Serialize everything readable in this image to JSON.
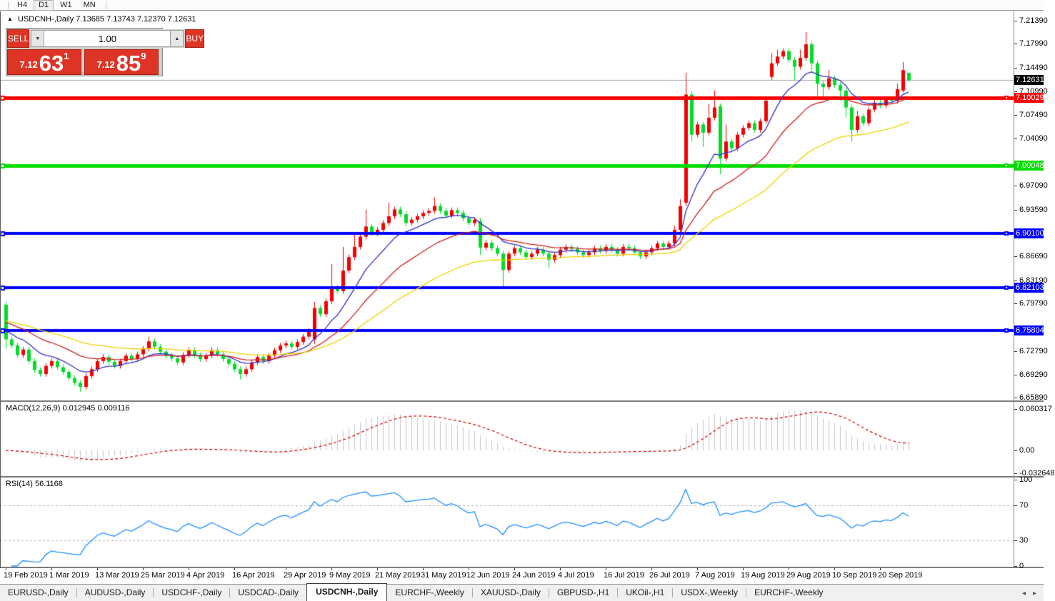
{
  "toolbar": {
    "timeframes": [
      {
        "label": "H4",
        "active": false
      },
      {
        "label": "D1",
        "active": true
      },
      {
        "label": "W1",
        "active": false
      },
      {
        "label": "MN",
        "active": false
      }
    ]
  },
  "title": {
    "collapse_icon": "▲",
    "symbol": "USDCNH-,Daily",
    "ohlc": "7.13685 7.13743 7.12370 7.12631"
  },
  "trade_panel": {
    "sell_label": "SELL",
    "buy_label": "BUY",
    "volume": "1.00",
    "down_icon": "▼",
    "up_icon": "▲",
    "sell_price_small": "7.12",
    "sell_price_big": "63",
    "sell_price_sup": "1",
    "buy_price_small": "7.12",
    "buy_price_big": "85",
    "buy_price_sup": "9"
  },
  "price_axis": {
    "current": {
      "value": 7.12631,
      "label": "7.12631",
      "box_color": "#000000"
    },
    "ticks": [
      {
        "v": 7.2139,
        "t": "7.21390"
      },
      {
        "v": 7.1799,
        "t": "7.17990"
      },
      {
        "v": 7.1449,
        "t": "7.14490"
      },
      {
        "v": 7.1099,
        "t": "7.10990"
      },
      {
        "v": 7.0749,
        "t": "7.07490"
      },
      {
        "v": 7.0409,
        "t": "7.04090"
      },
      {
        "v": 6.9709,
        "t": "6.97090"
      },
      {
        "v": 6.9359,
        "t": "6.93590"
      },
      {
        "v": 6.8669,
        "t": "6.86690"
      },
      {
        "v": 6.8319,
        "t": "6.83190"
      },
      {
        "v": 6.7979,
        "t": "6.79790"
      },
      {
        "v": 6.7279,
        "t": "6.72790"
      },
      {
        "v": 6.6929,
        "t": "6.69290"
      },
      {
        "v": 6.6589,
        "t": "6.65890"
      }
    ]
  },
  "hlines": [
    {
      "value": 7.10029,
      "label": "7.10029",
      "color": "#FF0000",
      "thickness": 5
    },
    {
      "value": 7.00048,
      "label": "7.00048",
      "color": "#00DD00",
      "thickness": 5
    },
    {
      "value": 6.901,
      "label": "6.90100",
      "color": "#0000FF",
      "thickness": 4
    },
    {
      "value": 6.82103,
      "label": "6.82103",
      "color": "#0000FF",
      "thickness": 4
    },
    {
      "value": 6.75804,
      "label": "6.75804",
      "color": "#0000FF",
      "thickness": 4
    }
  ],
  "chart_data": {
    "type": "candlestick",
    "symbol": "USDCNH",
    "timeframe": "Daily",
    "up_color": "#F40000",
    "down_color": "#00DC28",
    "current_price_line_color": "#a8a8a8",
    "closes": [
      6.745,
      6.736,
      6.722,
      6.73,
      6.713,
      6.7,
      6.694,
      6.706,
      6.713,
      6.704,
      6.697,
      6.688,
      6.681,
      6.675,
      6.691,
      6.701,
      6.713,
      6.719,
      6.712,
      6.706,
      6.713,
      6.721,
      6.716,
      6.723,
      6.731,
      6.742,
      6.734,
      6.727,
      6.721,
      6.717,
      6.711,
      6.722,
      6.729,
      6.722,
      6.716,
      6.721,
      6.729,
      6.723,
      6.716,
      6.709,
      6.701,
      6.694,
      6.701,
      6.711,
      6.719,
      6.713,
      6.721,
      6.729,
      6.736,
      6.739,
      6.734,
      6.741,
      6.749,
      6.756,
      6.791,
      6.782,
      6.801,
      6.821,
      6.816,
      6.846,
      6.866,
      6.881,
      6.896,
      6.911,
      6.901,
      6.906,
      6.916,
      6.926,
      6.936,
      6.929,
      6.916,
      6.921,
      6.926,
      6.931,
      6.934,
      6.941,
      6.934,
      6.927,
      6.935,
      6.931,
      6.923,
      6.916,
      6.921,
      6.88,
      6.887,
      6.879,
      6.871,
      6.847,
      6.871,
      6.879,
      6.873,
      6.866,
      6.871,
      6.877,
      6.871,
      6.862,
      6.869,
      6.877,
      6.881,
      6.878,
      6.873,
      6.869,
      6.873,
      6.879,
      6.875,
      6.881,
      6.877,
      6.871,
      6.881,
      6.879,
      6.873,
      6.867,
      6.873,
      6.879,
      6.886,
      6.881,
      6.886,
      6.906,
      6.941,
      7.105,
      7.046,
      7.061,
      7.049,
      7.071,
      7.086,
      7.011,
      7.036,
      7.026,
      7.046,
      7.056,
      7.063,
      7.053,
      7.066,
      7.096,
      7.151,
      7.161,
      7.169,
      7.156,
      7.146,
      7.159,
      7.179,
      7.151,
      7.121,
      7.116,
      7.129,
      7.119,
      7.111,
      7.086,
      7.053,
      7.073,
      7.063,
      7.083,
      7.093,
      7.089,
      7.099,
      7.096,
      7.113,
      7.141,
      7.1263
    ],
    "overrides": {
      "0": {
        "o": 6.796,
        "h": 6.801,
        "l": 6.731
      },
      "13": {
        "l": 6.668
      },
      "25": {
        "h": 6.749
      },
      "41": {
        "l": 6.686
      },
      "53": {
        "h": 6.762
      },
      "54": {
        "o": 6.745,
        "h": 6.8,
        "l": 6.738
      },
      "57": {
        "h": 6.856
      },
      "59": {
        "h": 6.881
      },
      "61": {
        "h": 6.902
      },
      "63": {
        "h": 6.936
      },
      "67": {
        "h": 6.946
      },
      "75": {
        "h": 6.954
      },
      "83": {
        "o": 6.919,
        "l": 6.869
      },
      "87": {
        "l": 6.8215
      },
      "95": {
        "l": 6.85
      },
      "117": {
        "h": 6.912
      },
      "118": {
        "h": 6.951
      },
      "119": {
        "o": 6.946,
        "h": 7.137,
        "l": 6.941
      },
      "120": {
        "o": 7.105,
        "h": 7.11,
        "l": 7.036
      },
      "122": {
        "l": 7.028
      },
      "123": {
        "h": 7.091
      },
      "124": {
        "h": 7.111
      },
      "125": {
        "o": 7.088,
        "l": 6.988
      },
      "126": {
        "h": 7.061
      },
      "133": {
        "h": 7.101
      },
      "134": {
        "o": 7.131,
        "h": 7.166,
        "l": 7.126
      },
      "135": {
        "h": 7.171
      },
      "138": {
        "l": 7.126
      },
      "139": {
        "h": 7.171
      },
      "140": {
        "h": 7.197
      },
      "141": {
        "l": 7.141
      },
      "142": {
        "o": 7.151,
        "l": 7.103
      },
      "143": {
        "l": 7.098
      },
      "144": {
        "h": 7.141
      },
      "146": {
        "l": 7.096
      },
      "147": {
        "l": 7.071
      },
      "148": {
        "l": 7.036
      },
      "149": {
        "h": 7.081
      },
      "152": {
        "h": 7.101
      },
      "156": {
        "h": 7.121
      },
      "157": {
        "o": 7.111,
        "h": 7.153,
        "l": 7.108
      },
      "158": {
        "o": 7.13685,
        "h": 7.13743,
        "l": 7.1237
      }
    },
    "ma_lines": [
      {
        "name": "fast",
        "color": "#3232CC",
        "period": 10
      },
      {
        "name": "medium",
        "color": "#D02020",
        "period": 22
      },
      {
        "name": "slow",
        "color": "#EFD400",
        "period": 45
      }
    ]
  },
  "macd_panel": {
    "label": "MACD(12,26,9)",
    "macd_value": "0.012945",
    "signal_value": "0.009116",
    "params": {
      "fast": 12,
      "slow": 26,
      "signal": 9
    },
    "bar_color": "#C6C6C6",
    "signal_color": "#CC0000",
    "ticks": [
      {
        "v": 0.060317,
        "t": "0.060317"
      },
      {
        "v": 0.0,
        "t": "0.00"
      },
      {
        "v": -0.032648,
        "t": "-0.032648"
      }
    ]
  },
  "rsi_panel": {
    "label": "RSI(14)",
    "value": "56.1168",
    "period": 14,
    "line_color": "#1E90FF",
    "levels": [
      70,
      30
    ],
    "ticks": [
      {
        "v": 100,
        "t": "100"
      },
      {
        "v": 70,
        "t": "70"
      },
      {
        "v": 30,
        "t": "30"
      },
      {
        "v": 0,
        "t": "0"
      }
    ]
  },
  "date_axis": {
    "labels": [
      "19 Feb 2019",
      "1 Mar 2019",
      "13 Mar 2019",
      "25 Mar 2019",
      "4 Apr 2019",
      "16 Apr 2019",
      "29 Apr 2019",
      "9 May 2019",
      "21 May 2019",
      "31 May 2019",
      "12 Jun 2019",
      "24 Jun 2019",
      "4 Jul 2019",
      "16 Jul 2019",
      "26 Jul 2019",
      "7 Aug 2019",
      "19 Aug 2019",
      "29 Aug 2019",
      "10 Sep 2019",
      "20 Sep 2019"
    ],
    "indices": [
      0,
      8,
      16,
      24,
      32,
      40,
      49,
      57,
      65,
      73,
      81,
      89,
      97,
      105,
      113,
      121,
      129,
      137,
      145,
      153
    ]
  },
  "tabs": {
    "scroll_left": "◂",
    "scroll_right": "▸",
    "items": [
      {
        "label": "EURUSD-,Daily",
        "active": false
      },
      {
        "label": "AUDUSD-,Daily",
        "active": false
      },
      {
        "label": "USDCHF-,Daily",
        "active": false
      },
      {
        "label": "USDCAD-,Daily",
        "active": false
      },
      {
        "label": "USDCNH-,Daily",
        "active": true
      },
      {
        "label": "EURCHF-,Weekly",
        "active": false
      },
      {
        "label": "XAUUSD-,Daily",
        "active": false
      },
      {
        "label": "GBPUSD-,H1",
        "active": false
      },
      {
        "label": "UKOil-,H1",
        "active": false
      },
      {
        "label": "USDX-,Weekly",
        "active": false
      },
      {
        "label": "EURCHF-,Weekly",
        "active": false
      }
    ]
  }
}
